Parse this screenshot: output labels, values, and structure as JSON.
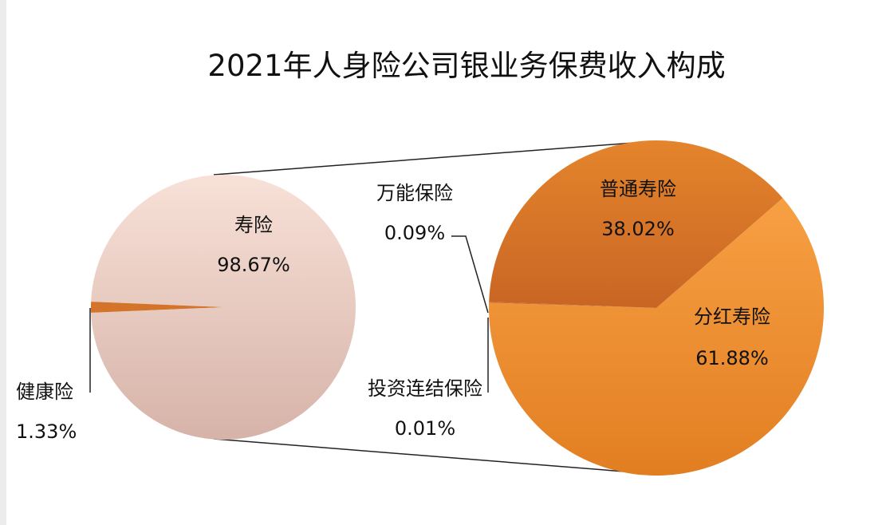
{
  "chart_data": {
    "type": "pie",
    "variant": "pie-of-pie",
    "title": "2021年人身险公司银业务保费收入构成",
    "primary": {
      "slices": [
        {
          "name": "寿险",
          "value": 98.67,
          "label": "98.67%",
          "color": "#f0cec1"
        },
        {
          "name": "健康险",
          "value": 1.33,
          "label": "1.33%",
          "color": "#d4742a"
        }
      ]
    },
    "secondary": {
      "breakdown_of": "寿险",
      "slices": [
        {
          "name": "分红寿险",
          "value": 61.88,
          "label": "61.88%",
          "color": "#f28f30"
        },
        {
          "name": "普通寿险",
          "value": 38.02,
          "label": "38.02%",
          "color": "#d8772a"
        },
        {
          "name": "万能保险",
          "value": 0.09,
          "label": "0.09%",
          "color": "#c9692a"
        },
        {
          "name": "投资连结保险",
          "value": 0.01,
          "label": "0.01%",
          "color": "#c9692a"
        }
      ]
    },
    "legend": "none",
    "grid": false
  }
}
